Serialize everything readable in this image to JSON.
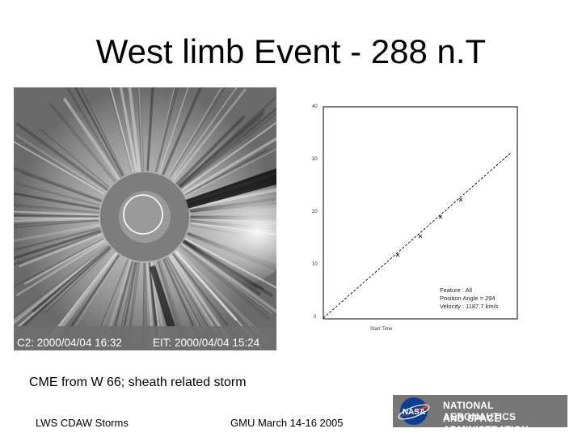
{
  "slide": {
    "title": "West limb Event - 288 n.T",
    "caption": "CME from W 66; sheath related storm",
    "footer_left": "LWS CDAW Storms",
    "footer_center": "GMU March 14-16 2005"
  },
  "lasco_image": {
    "left_label": "C2: 2000/04/04 16:32",
    "right_label": "EIT: 2000/04/04 15:24"
  },
  "plot": {
    "y_ticks": [
      "0",
      "10",
      "20",
      "30",
      "40"
    ],
    "legend_lines": [
      "Feature : All",
      "Position Angle = 294",
      "Velocity : 1187.7 km/s"
    ]
  },
  "logo": {
    "icon": "nasa-meatball-icon",
    "line1": "NATIONAL AERONAUTICS",
    "line2": "AND SPACE ADMINISTRATION",
    "colors": {
      "blue": "#0b3d91",
      "red": "#fc3d21"
    }
  }
}
